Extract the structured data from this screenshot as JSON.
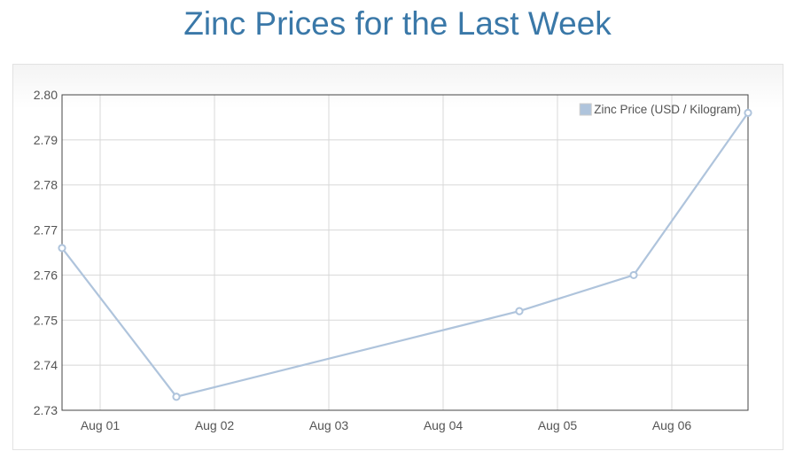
{
  "page": {
    "title": "Zinc Prices for the Last Week"
  },
  "colors": {
    "title": "#3a78a8",
    "series": "#afc4dc",
    "grid": "#d8d8d8",
    "axis": "#444444",
    "text": "#545454"
  },
  "chart_data": {
    "type": "line",
    "title": "Zinc Prices for the Last Week",
    "xlabel": "",
    "ylabel": "",
    "x_ticks": [
      "Aug 01",
      "Aug 02",
      "Aug 03",
      "Aug 04",
      "Aug 05",
      "Aug 06"
    ],
    "x_range": [
      "2013-07-31T16:00",
      "2013-08-06T16:00"
    ],
    "ylim": [
      2.73,
      2.8
    ],
    "y_ticks": [
      "2.73",
      "2.74",
      "2.75",
      "2.76",
      "2.77",
      "2.78",
      "2.79",
      "2.80"
    ],
    "grid": true,
    "legend_position": "top-right",
    "series": [
      {
        "name": "Zinc Price (USD / Kilogram)",
        "points": [
          {
            "x": "2013-07-31T16:00",
            "y": 2.766
          },
          {
            "x": "2013-08-01T16:00",
            "y": 2.733
          },
          {
            "x": "2013-08-04T16:00",
            "y": 2.752
          },
          {
            "x": "2013-08-05T16:00",
            "y": 2.76
          },
          {
            "x": "2013-08-06T16:00",
            "y": 2.796
          }
        ]
      }
    ]
  }
}
